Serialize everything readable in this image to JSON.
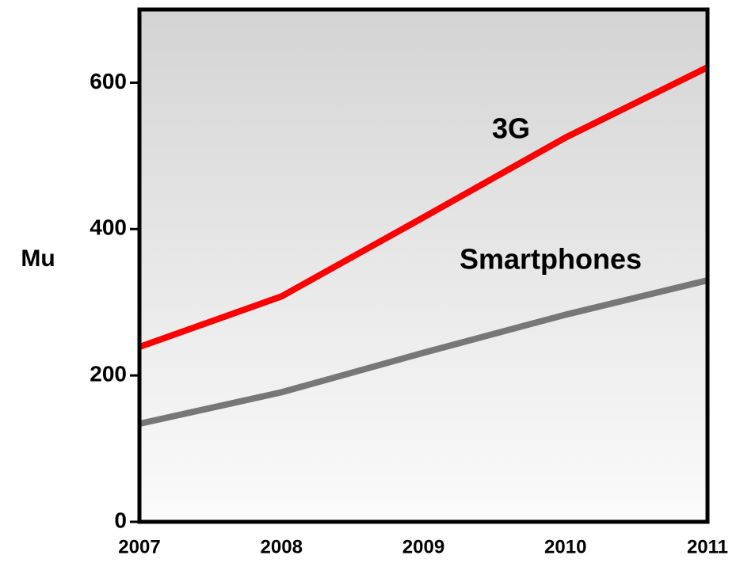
{
  "chart_data": {
    "type": "line",
    "ylabel": "Mu",
    "x": [
      2007,
      2008,
      2009,
      2010,
      2011
    ],
    "xlim": [
      2007,
      2011
    ],
    "xticks": [
      2007,
      2008,
      2009,
      2010,
      2011
    ],
    "ylim": [
      0,
      700
    ],
    "yticks": [
      0,
      200,
      400,
      600
    ],
    "series": [
      {
        "name": "3G",
        "color": "#ff0000",
        "values": [
          239,
          308,
          416,
          525,
          621
        ]
      },
      {
        "name": "Smartphones",
        "color": "#777777",
        "values": [
          134,
          177,
          231,
          283,
          330
        ]
      }
    ]
  }
}
